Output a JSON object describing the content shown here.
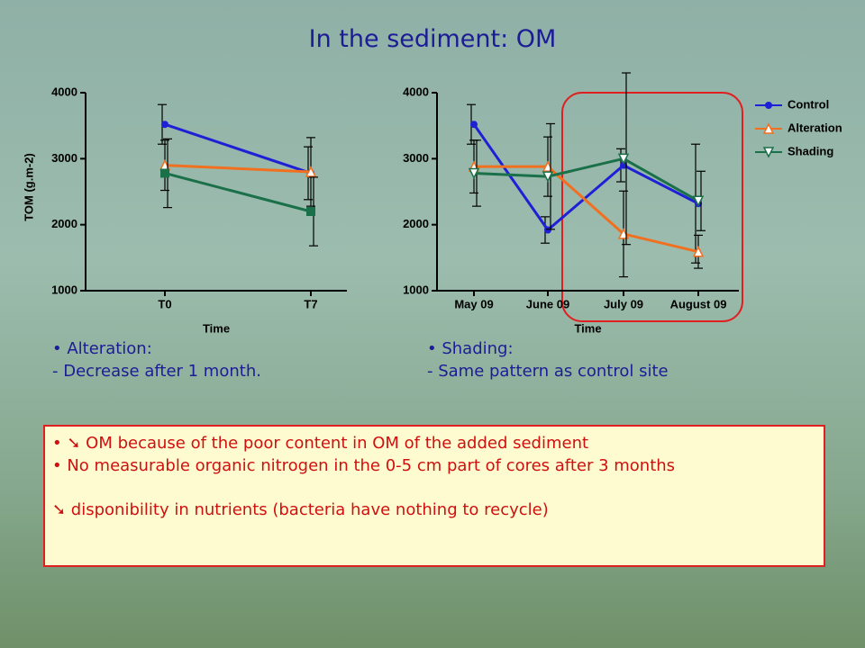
{
  "title": "In the sediment: OM",
  "chart_data": [
    {
      "type": "line",
      "xlabel": "Time",
      "ylabel": "TOM (g.m-2)",
      "categories": [
        "T0",
        "T7"
      ],
      "ylim": [
        1000,
        4000
      ],
      "yticks": [
        1000,
        2000,
        3000,
        4000
      ],
      "series": [
        {
          "name": "Control",
          "color": "#1f1fd6",
          "marker": "circle",
          "values": [
            3520,
            2780
          ],
          "errors": [
            300,
            400
          ]
        },
        {
          "name": "Alteration",
          "color": "#f07020",
          "marker": "triangle-up",
          "values": [
            2900,
            2800
          ],
          "errors": [
            380,
            520
          ]
        },
        {
          "name": "Shading",
          "color": "#1a7048",
          "marker": "square",
          "values": [
            2780,
            2200
          ],
          "errors": [
            520,
            520
          ]
        }
      ]
    },
    {
      "type": "line",
      "xlabel": "Time",
      "legend": "upper right",
      "categories": [
        "May 09",
        "June 09",
        "July 09",
        "August 09"
      ],
      "ylim": [
        1000,
        4000
      ],
      "yticks": [
        1000,
        2000,
        3000,
        4000
      ],
      "series": [
        {
          "name": "Control",
          "color": "#1f1fd6",
          "marker": "circle",
          "values": [
            3520,
            1920,
            2900,
            2320
          ],
          "errors": [
            300,
            200,
            250,
            900
          ]
        },
        {
          "name": "Alteration",
          "color": "#f07020",
          "marker": "triangle-up",
          "values": [
            2880,
            2880,
            1860,
            1590
          ],
          "errors": [
            400,
            450,
            650,
            250
          ]
        },
        {
          "name": "Shading",
          "color": "#1a7048",
          "marker": "triangle-down",
          "values": [
            2780,
            2730,
            3000,
            2360
          ],
          "errors": [
            500,
            800,
            1300,
            450
          ]
        }
      ]
    }
  ],
  "notes": {
    "left": [
      "Alteration:",
      "- Decrease after 1 month."
    ],
    "right": [
      "Shading:",
      "- Same pattern as control site"
    ]
  },
  "box": [
    "➘ OM because of the poor content in OM of the added sediment",
    "No measurable organic nitrogen in the 0-5 cm part of cores after 3 months",
    "➘ disponibility in nutrients (bacteria have nothing to recycle)"
  ]
}
